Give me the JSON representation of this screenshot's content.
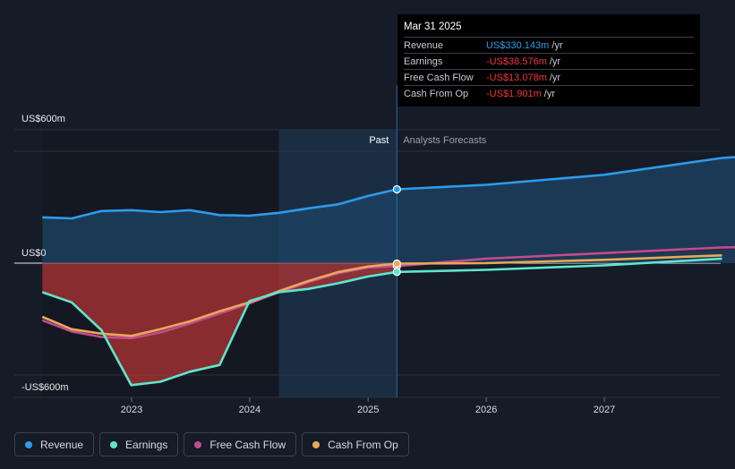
{
  "tooltip": {
    "date": "Mar 31 2025",
    "rows": [
      {
        "label": "Revenue",
        "value": "US$330.143m",
        "unit": "/yr",
        "color": "#2d9bec"
      },
      {
        "label": "Earnings",
        "value": "-US$38.576m",
        "unit": "/yr",
        "color": "#f0393b"
      },
      {
        "label": "Free Cash Flow",
        "value": "-US$13.078m",
        "unit": "/yr",
        "color": "#f0393b"
      },
      {
        "label": "Cash From Op",
        "value": "-US$1.901m",
        "unit": "/yr",
        "color": "#f0393b"
      }
    ]
  },
  "legend": [
    {
      "label": "Revenue",
      "color": "#2d9bec"
    },
    {
      "label": "Earnings",
      "color": "#5ee6cc"
    },
    {
      "label": "Free Cash Flow",
      "color": "#c24c8f"
    },
    {
      "label": "Cash From Op",
      "color": "#e8a85a"
    }
  ],
  "chart_data": {
    "type": "line",
    "x_ticks": [
      "2023",
      "2024",
      "2025",
      "2026",
      "2027"
    ],
    "y_tick_labels": [
      "US$600m",
      "US$0",
      "-US$600m"
    ],
    "ylim": [
      -600,
      600
    ],
    "past_label": "Past",
    "forecast_label": "Analysts Forecasts",
    "highlight_date": "2025-03-31",
    "colors": {
      "revenue": "#2d9bec",
      "earnings": "#5ee6cc",
      "fcf": "#c24c8f",
      "cfo": "#e8a85a",
      "negative_fill": "#b73535"
    },
    "series": [
      {
        "name": "Revenue",
        "key": "revenue",
        "points": [
          [
            "2022-03-31",
            205
          ],
          [
            "2022-06-30",
            200
          ],
          [
            "2022-09-30",
            233
          ],
          [
            "2022-12-31",
            237
          ],
          [
            "2023-03-31",
            228
          ],
          [
            "2023-06-30",
            237
          ],
          [
            "2023-09-30",
            215
          ],
          [
            "2023-12-31",
            212
          ],
          [
            "2024-03-31",
            225
          ],
          [
            "2024-06-30",
            245
          ],
          [
            "2024-09-30",
            263
          ],
          [
            "2024-12-31",
            300
          ],
          [
            "2025-03-31",
            330
          ]
        ],
        "forecast": [
          [
            "2025-03-31",
            330
          ],
          [
            "2025-12-31",
            350
          ],
          [
            "2026-12-31",
            395
          ],
          [
            "2027-12-31",
            470
          ],
          [
            "2028-12-31",
            505
          ]
        ]
      },
      {
        "name": "Earnings",
        "key": "earnings",
        "points": [
          [
            "2022-03-31",
            -130
          ],
          [
            "2022-06-30",
            -175
          ],
          [
            "2022-09-30",
            -300
          ],
          [
            "2022-12-31",
            -545
          ],
          [
            "2023-03-31",
            -530
          ],
          [
            "2023-06-30",
            -485
          ],
          [
            "2023-09-30",
            -455
          ],
          [
            "2023-12-31",
            -170
          ],
          [
            "2024-03-31",
            -130
          ],
          [
            "2024-06-30",
            -115
          ],
          [
            "2024-09-30",
            -90
          ],
          [
            "2024-12-31",
            -60
          ],
          [
            "2025-03-31",
            -39
          ]
        ],
        "forecast": [
          [
            "2025-03-31",
            -39
          ],
          [
            "2025-12-31",
            -30
          ],
          [
            "2026-12-31",
            -10
          ],
          [
            "2027-12-31",
            20
          ]
        ]
      },
      {
        "name": "Free Cash Flow",
        "key": "fcf",
        "points": [
          [
            "2022-03-31",
            -255
          ],
          [
            "2022-06-30",
            -305
          ],
          [
            "2022-09-30",
            -330
          ],
          [
            "2022-12-31",
            -335
          ],
          [
            "2023-03-31",
            -310
          ],
          [
            "2023-06-30",
            -270
          ],
          [
            "2023-09-30",
            -225
          ],
          [
            "2023-12-31",
            -180
          ],
          [
            "2024-03-31",
            -130
          ],
          [
            "2024-06-30",
            -85
          ],
          [
            "2024-09-30",
            -45
          ],
          [
            "2024-12-31",
            -20
          ],
          [
            "2025-03-31",
            -13
          ]
        ],
        "forecast": [
          [
            "2025-03-31",
            -13
          ],
          [
            "2025-12-31",
            20
          ],
          [
            "2026-12-31",
            45
          ],
          [
            "2027-12-31",
            70
          ],
          [
            "2028-12-31",
            80
          ]
        ]
      },
      {
        "name": "Cash From Op",
        "key": "cfo",
        "points": [
          [
            "2022-03-31",
            -240
          ],
          [
            "2022-06-30",
            -295
          ],
          [
            "2022-09-30",
            -315
          ],
          [
            "2022-12-31",
            -325
          ],
          [
            "2023-03-31",
            -295
          ],
          [
            "2023-06-30",
            -260
          ],
          [
            "2023-09-30",
            -215
          ],
          [
            "2023-12-31",
            -175
          ],
          [
            "2024-03-31",
            -125
          ],
          [
            "2024-06-30",
            -80
          ],
          [
            "2024-09-30",
            -40
          ],
          [
            "2024-12-31",
            -15
          ],
          [
            "2025-03-31",
            -2
          ]
        ],
        "forecast": [
          [
            "2025-03-31",
            -2
          ],
          [
            "2025-12-31",
            0
          ],
          [
            "2026-12-31",
            15
          ],
          [
            "2027-12-31",
            35
          ]
        ]
      }
    ]
  }
}
